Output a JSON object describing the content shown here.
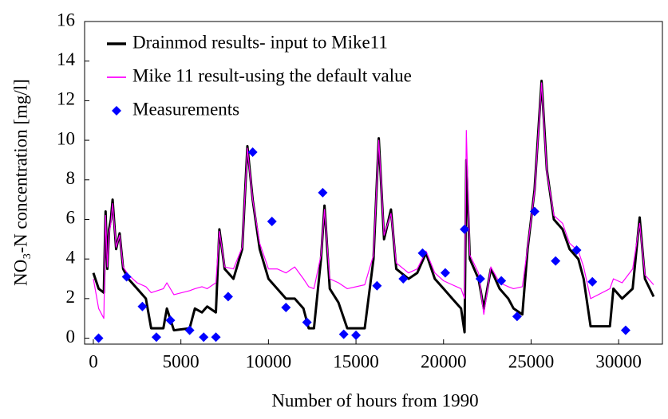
{
  "chart_data": {
    "type": "line",
    "xlabel": "Number of hours from 1990",
    "ylabel": "NO₃-N concentration [mg/l]",
    "xlim": [
      -500,
      32500
    ],
    "xticks": [
      0,
      5000,
      10000,
      15000,
      20000,
      25000,
      30000
    ],
    "ylim": [
      -0.3,
      16
    ],
    "yticks": [
      0,
      2,
      4,
      6,
      8,
      10,
      12,
      14,
      16
    ],
    "grid": false,
    "legend": "upper-left",
    "x": [
      0,
      300,
      600,
      700,
      800,
      900,
      1000,
      1100,
      1300,
      1500,
      1700,
      2000,
      2500,
      3000,
      3300,
      4000,
      4200,
      4600,
      5500,
      5800,
      6200,
      6500,
      7000,
      7200,
      7500,
      8000,
      8500,
      8800,
      9100,
      9500,
      10000,
      10500,
      11000,
      11500,
      12000,
      12300,
      12600,
      13000,
      13200,
      13500,
      14000,
      14500,
      15500,
      16000,
      16300,
      16600,
      17000,
      17300,
      18000,
      18500,
      19000,
      19500,
      20000,
      20500,
      21000,
      21200,
      21300,
      21500,
      22000,
      22300,
      22700,
      23200,
      23700,
      24000,
      24500,
      24800,
      25200,
      25600,
      25900,
      26300,
      26800,
      27200,
      27700,
      28000,
      28400,
      29500,
      29700,
      30200,
      30800,
      31200,
      31500,
      32000
    ],
    "series": [
      {
        "name": "Drainmod results- input to Mike11",
        "color": "#000000",
        "width": 3,
        "values": [
          3.3,
          2.5,
          2.3,
          6.4,
          3.5,
          5.5,
          6.0,
          7.0,
          4.5,
          5.3,
          3.5,
          3.0,
          2.5,
          2.0,
          0.5,
          0.5,
          1.5,
          0.4,
          0.5,
          1.5,
          1.3,
          1.6,
          1.3,
          5.5,
          3.5,
          3.0,
          4.5,
          9.7,
          7.0,
          4.5,
          3.0,
          2.5,
          2.0,
          2.0,
          1.5,
          0.5,
          0.5,
          4.0,
          6.7,
          2.5,
          1.8,
          0.5,
          0.5,
          4.0,
          10.1,
          5.0,
          6.5,
          3.5,
          3.0,
          3.3,
          4.3,
          3.0,
          2.5,
          2.0,
          1.5,
          0.3,
          9.0,
          4.0,
          3.0,
          1.5,
          3.5,
          2.5,
          2.0,
          1.5,
          1.2,
          4.5,
          7.5,
          13.0,
          8.5,
          6.0,
          5.5,
          4.5,
          4.0,
          3.0,
          0.6,
          0.6,
          2.5,
          2.0,
          2.5,
          6.1,
          3.0,
          2.1
        ]
      },
      {
        "name": "Mike 11 result-using the default value",
        "color": "#ff00ff",
        "width": 1.2,
        "values": [
          3.0,
          1.5,
          1.0,
          6.2,
          3.6,
          5.3,
          5.8,
          6.8,
          4.6,
          5.2,
          3.6,
          3.2,
          2.8,
          2.6,
          2.3,
          2.5,
          2.8,
          2.2,
          2.4,
          2.5,
          2.6,
          2.5,
          2.8,
          5.4,
          3.6,
          3.5,
          4.6,
          9.6,
          7.0,
          4.8,
          3.5,
          3.5,
          3.3,
          3.6,
          3.0,
          2.6,
          2.5,
          4.2,
          6.5,
          3.0,
          2.8,
          2.5,
          2.7,
          4.2,
          10.0,
          5.2,
          6.3,
          3.8,
          3.3,
          3.5,
          4.4,
          3.3,
          2.9,
          2.7,
          2.5,
          2.0,
          10.5,
          4.2,
          3.3,
          1.2,
          3.6,
          2.8,
          2.6,
          2.5,
          2.6,
          4.6,
          7.4,
          12.9,
          8.4,
          6.2,
          5.8,
          4.8,
          4.4,
          3.6,
          2.0,
          2.5,
          3.0,
          2.8,
          3.5,
          5.8,
          3.2,
          2.7
        ]
      },
      {
        "name": "Measurements",
        "color": "#0000ff",
        "marker": "diamond",
        "x": [
          300,
          1900,
          2800,
          3600,
          4400,
          5500,
          6300,
          7000,
          7700,
          9100,
          10200,
          11000,
          12200,
          13100,
          14300,
          15000,
          16200,
          17700,
          18800,
          20100,
          21200,
          22100,
          23300,
          24200,
          25200,
          26400,
          27600,
          28500,
          30400
        ],
        "values": [
          0,
          3.1,
          1.6,
          0.05,
          0.9,
          0.4,
          0.05,
          0.05,
          2.1,
          9.4,
          5.9,
          1.55,
          0.8,
          7.35,
          0.2,
          0.15,
          2.65,
          3.0,
          4.3,
          3.3,
          5.5,
          3.0,
          2.9,
          1.1,
          6.4,
          3.9,
          4.45,
          2.85,
          0.4
        ]
      }
    ]
  }
}
